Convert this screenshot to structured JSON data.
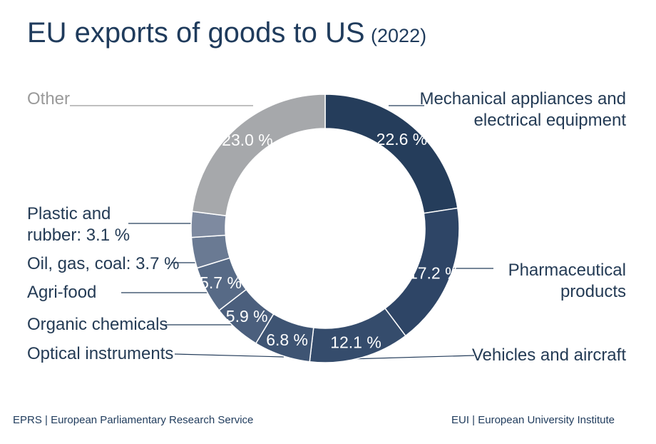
{
  "title": {
    "main": "EU exports of goods to US",
    "year": "(2022)"
  },
  "footer": {
    "left": "EPRS | European Parliamentary Research Service",
    "right": "EUI | European University Institute"
  },
  "chart_data": {
    "type": "pie",
    "donut": true,
    "categories": [
      "Mechanical appliances and electrical equipment",
      "Pharmaceutical products",
      "Vehicles and aircraft",
      "Optical instruments",
      "Organic chemicals",
      "Agri-food",
      "Oil, gas, coal",
      "Plastic and rubber",
      "Other"
    ],
    "values": [
      22.6,
      17.2,
      12.1,
      6.8,
      5.9,
      5.7,
      3.7,
      3.1,
      23.0
    ],
    "value_labels": [
      "22.6 %",
      "17.2 %",
      "12.1 %",
      "6.8 %",
      "5.9 %",
      "5.7 %",
      "",
      "",
      "23.0 %"
    ],
    "colors": [
      "#253d5b",
      "#2e4566",
      "#354c6c",
      "#3e5473",
      "#4b5f7d",
      "#576a86",
      "#6a7a93",
      "#7e8aa0",
      "#a6a8ab"
    ],
    "legend_labels": {
      "mechanical_line1": "Mechanical appliances and",
      "mechanical_line2": "electrical equipment",
      "pharma_line1": "Pharmaceutical",
      "pharma_line2": "products",
      "vehicles": "Vehicles and aircraft",
      "optical": "Optical instruments",
      "organic": "Organic chemicals",
      "agri": "Agri-food",
      "oil": "Oil, gas, coal: 3.7 %",
      "plastic_line1": "Plastic and",
      "plastic_line2": "rubber: 3.1 %",
      "other": "Other"
    }
  }
}
